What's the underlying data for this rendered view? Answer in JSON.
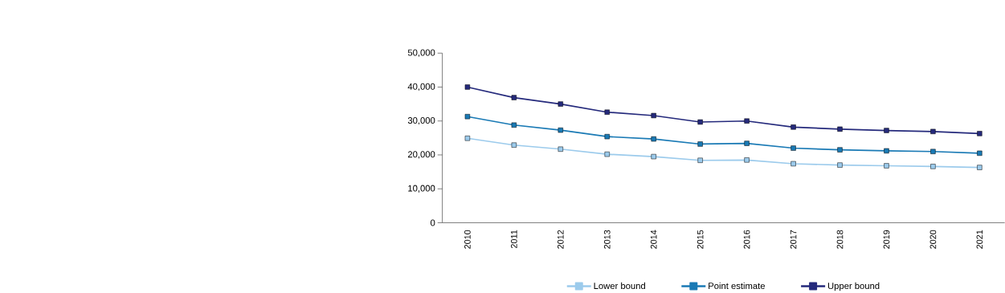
{
  "chart_data": {
    "type": "line",
    "categories": [
      "2010",
      "2011",
      "2012",
      "2013",
      "2014",
      "2015",
      "2016",
      "2017",
      "2018",
      "2019",
      "2020",
      "2021"
    ],
    "series": [
      {
        "name": "Lower bound",
        "color": "#9ccbec",
        "values": [
          24900,
          22900,
          21700,
          20200,
          19500,
          18400,
          18500,
          17400,
          17000,
          16800,
          16600,
          16300
        ]
      },
      {
        "name": "Point estimate",
        "color": "#1a7ab5",
        "values": [
          31300,
          28800,
          27300,
          25400,
          24700,
          23200,
          23400,
          22000,
          21500,
          21200,
          21000,
          20500
        ]
      },
      {
        "name": "Upper bound",
        "color": "#252a7c",
        "values": [
          40000,
          36900,
          35000,
          32600,
          31600,
          29700,
          30000,
          28200,
          27600,
          27200,
          26900,
          26300
        ]
      }
    ],
    "ylim": [
      0,
      50000
    ],
    "yticks": [
      {
        "value": 0,
        "label": "0"
      },
      {
        "value": 10000,
        "label": "10,000"
      },
      {
        "value": 20000,
        "label": "20,000"
      },
      {
        "value": 30000,
        "label": "30,000"
      },
      {
        "value": 40000,
        "label": "40,000"
      },
      {
        "value": 50000,
        "label": "50,000"
      }
    ],
    "grid": false,
    "legend": "bottom",
    "marker": "square",
    "line_style": "solid"
  }
}
